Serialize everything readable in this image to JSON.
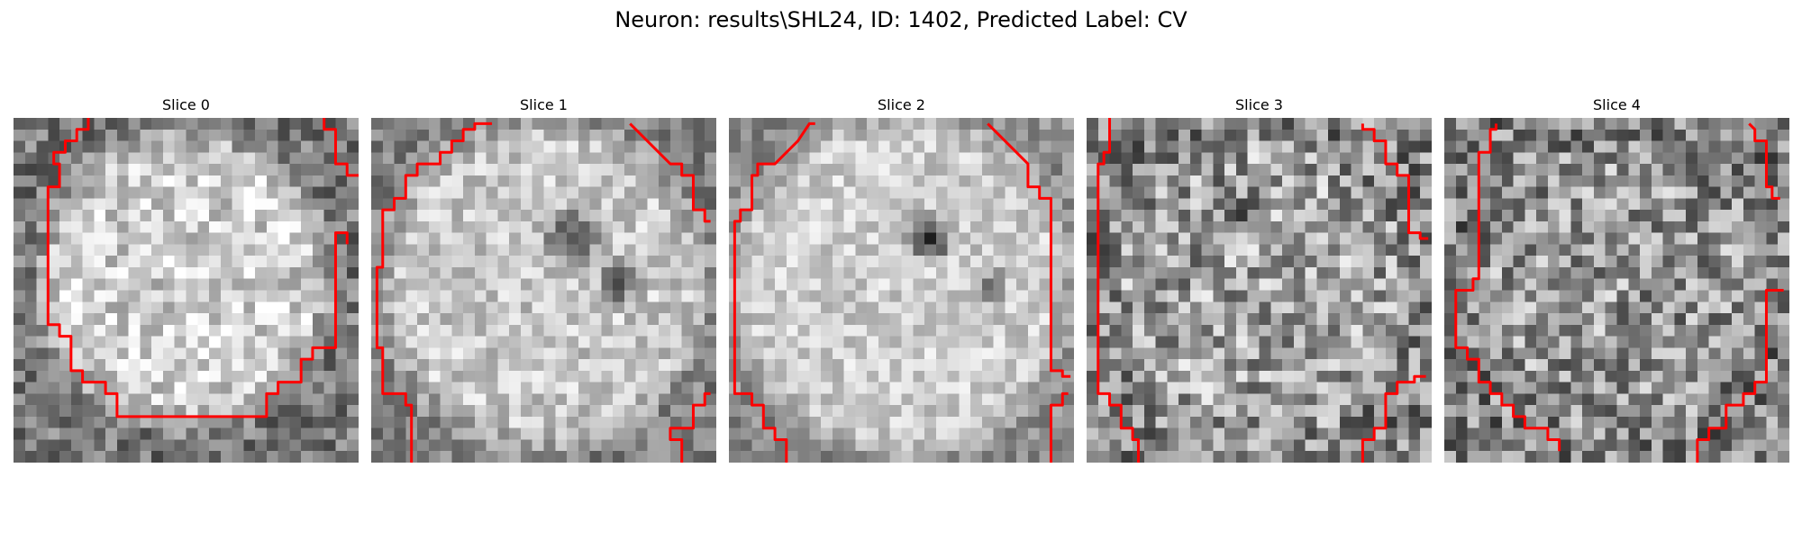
{
  "figure": {
    "suptitle": "Neuron: results\\SHL24, ID: 1402, Predicted Label: CV",
    "contour_color": "#ff0000",
    "colormap": "grayscale",
    "panels": [
      {
        "title": "Slice 0"
      },
      {
        "title": "Slice 1"
      },
      {
        "title": "Slice 2"
      },
      {
        "title": "Slice 3"
      },
      {
        "title": "Slice 4"
      }
    ]
  }
}
